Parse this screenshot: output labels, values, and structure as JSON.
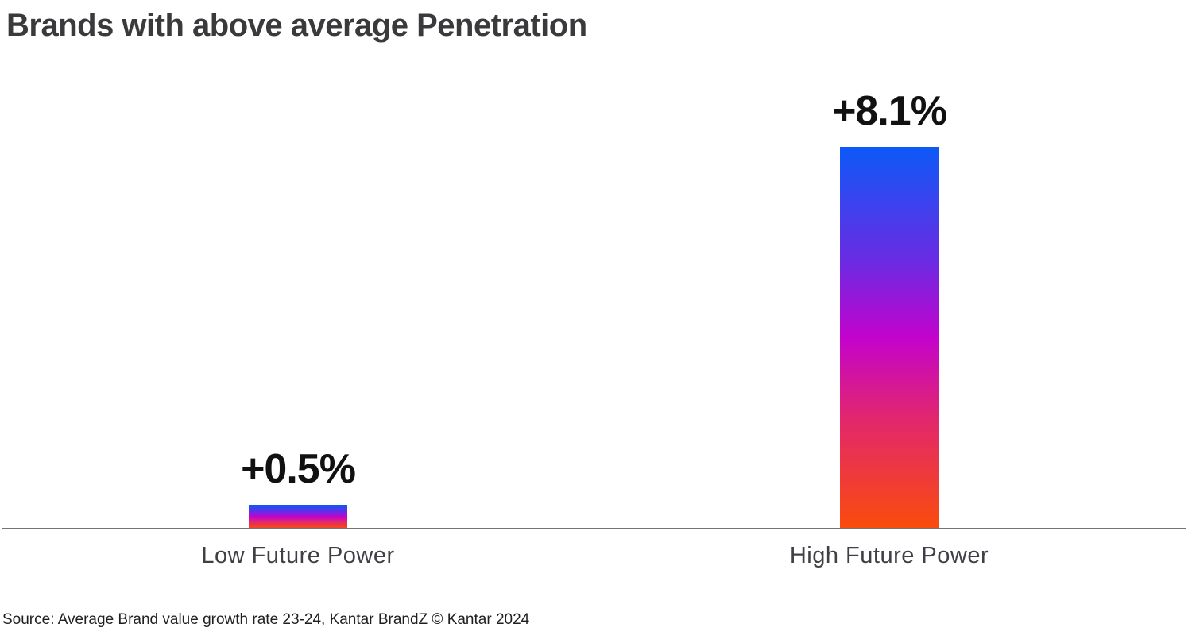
{
  "chart_data": {
    "type": "bar",
    "title": "Brands with above average Penetration",
    "categories": [
      "Low Future Power",
      "High Future Power"
    ],
    "values": [
      0.5,
      8.1
    ],
    "value_labels": [
      "+0.5%",
      "+8.1%"
    ],
    "ylim": [
      0,
      8.5
    ],
    "grid": false,
    "legend": "none",
    "bar_gradient_top_to_bottom": [
      "#0C59F8",
      "#6B2BE3",
      "#C303CC",
      "#E2266E",
      "#FA4C0C"
    ],
    "gradient_stops_pct": [
      0,
      30,
      50,
      71,
      100
    ],
    "axis_line_color": "#747474",
    "title_color": "#3a3a3c",
    "value_label_color": "#111111",
    "category_label_color": "#3f3f45",
    "source": "Source: Average Brand value growth rate 23-24, Kantar BrandZ © Kantar 2024"
  }
}
